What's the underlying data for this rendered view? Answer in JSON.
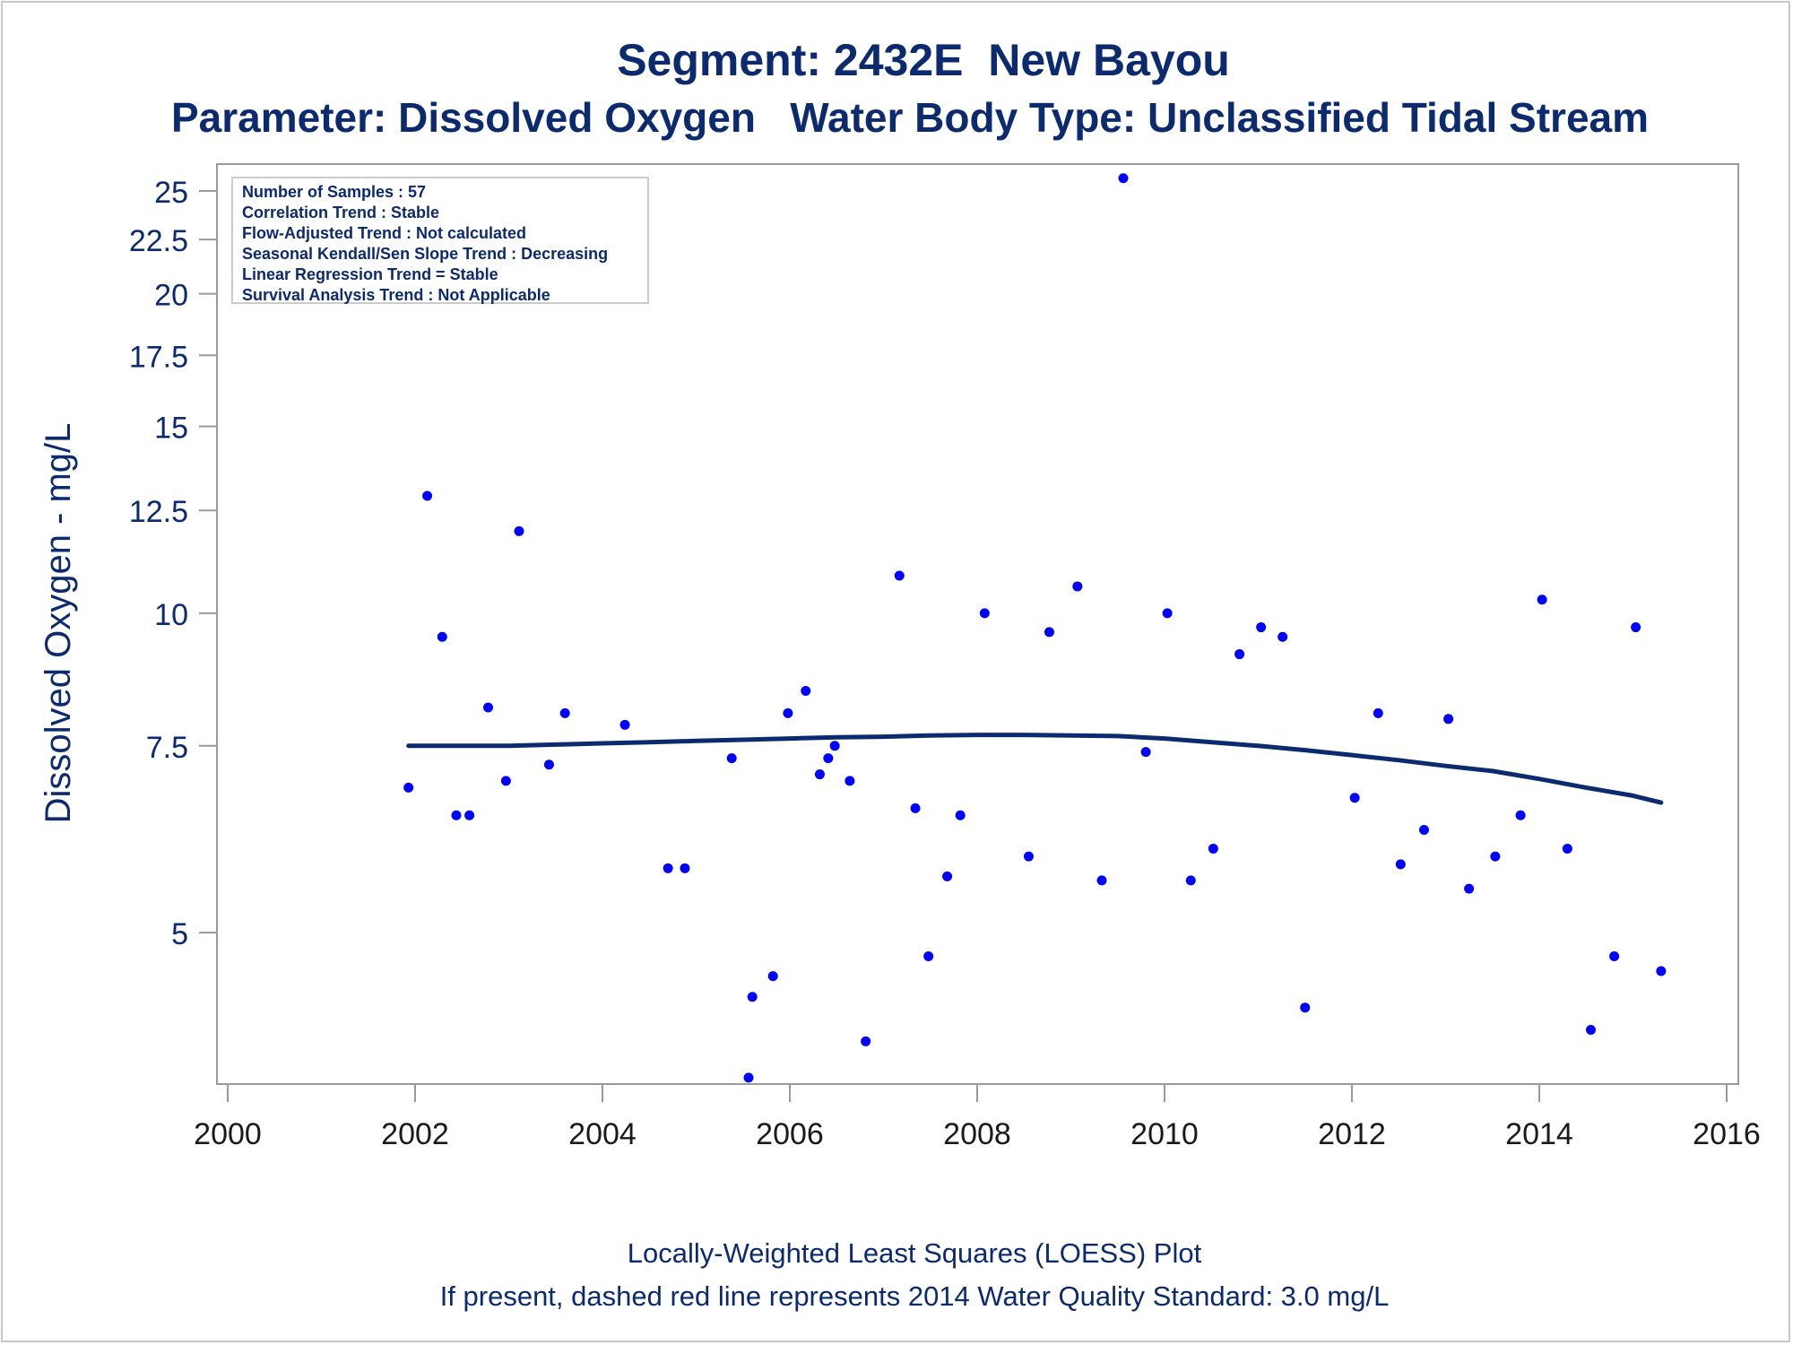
{
  "titles": {
    "line1": "Segment: 2432E  New Bayou",
    "line2": "Parameter: Dissolved Oxygen   Water Body Type: Unclassified Tidal Stream"
  },
  "stats_box": [
    "Number of Samples : 57",
    "Correlation Trend : Stable",
    "Flow-Adjusted Trend : Not calculated",
    "Seasonal Kendall/Sen Slope Trend : Decreasing",
    "Linear Regression Trend = Stable",
    "Survival Analysis Trend : Not Applicable"
  ],
  "footnotes": {
    "line1": "Locally-Weighted Least Squares (LOESS) Plot",
    "line2": "If present, dashed red line represents 2014 Water Quality Standard: 3.0 mg/L"
  },
  "colors": {
    "text": "#0c2a6e",
    "points": "#0000ff",
    "loess_line": "#0c2a6e",
    "axis": "#9a9a9a"
  },
  "chart_data": {
    "type": "scatter",
    "title": "Segment: 2432E  New Bayou",
    "subtitle": "Parameter: Dissolved Oxygen   Water Body Type: Unclassified Tidal Stream",
    "xlabel": "",
    "ylabel": "Dissolved Oxygen - mg/L",
    "y_scale": "log",
    "xlim": [
      2000,
      2016
    ],
    "ylim": [
      3.6,
      26.5
    ],
    "x_ticks": [
      2000,
      2002,
      2004,
      2006,
      2008,
      2010,
      2012,
      2014,
      2016
    ],
    "y_ticks": [
      5,
      7.5,
      10,
      12.5,
      15,
      17.5,
      20,
      22.5,
      25
    ],
    "y_tick_labels": [
      "5",
      "7.5",
      "10",
      "12.5",
      "15",
      "17.5",
      "20",
      "22.5",
      "25"
    ],
    "grid": false,
    "legend": "none",
    "points": [
      {
        "x": 2001.93,
        "y": 6.85
      },
      {
        "x": 2002.13,
        "y": 12.9
      },
      {
        "x": 2002.29,
        "y": 9.5
      },
      {
        "x": 2002.44,
        "y": 6.45
      },
      {
        "x": 2002.58,
        "y": 6.45
      },
      {
        "x": 2002.78,
        "y": 8.15
      },
      {
        "x": 2002.97,
        "y": 6.95
      },
      {
        "x": 2003.11,
        "y": 11.95
      },
      {
        "x": 2003.43,
        "y": 7.2
      },
      {
        "x": 2003.6,
        "y": 8.05
      },
      {
        "x": 2004.24,
        "y": 7.85
      },
      {
        "x": 2004.7,
        "y": 5.75
      },
      {
        "x": 2004.88,
        "y": 5.75
      },
      {
        "x": 2005.38,
        "y": 7.3
      },
      {
        "x": 2005.56,
        "y": 3.65
      },
      {
        "x": 2005.6,
        "y": 4.35
      },
      {
        "x": 2005.82,
        "y": 4.55
      },
      {
        "x": 2005.98,
        "y": 8.05
      },
      {
        "x": 2006.17,
        "y": 8.45
      },
      {
        "x": 2006.32,
        "y": 7.05
      },
      {
        "x": 2006.41,
        "y": 7.3
      },
      {
        "x": 2006.48,
        "y": 7.5
      },
      {
        "x": 2006.64,
        "y": 6.95
      },
      {
        "x": 2006.81,
        "y": 3.95
      },
      {
        "x": 2007.17,
        "y": 10.85
      },
      {
        "x": 2007.34,
        "y": 6.55
      },
      {
        "x": 2007.48,
        "y": 4.75
      },
      {
        "x": 2007.68,
        "y": 5.65
      },
      {
        "x": 2007.82,
        "y": 6.45
      },
      {
        "x": 2008.08,
        "y": 10.0
      },
      {
        "x": 2008.55,
        "y": 5.9
      },
      {
        "x": 2008.77,
        "y": 9.6
      },
      {
        "x": 2009.07,
        "y": 10.6
      },
      {
        "x": 2009.33,
        "y": 5.6
      },
      {
        "x": 2009.56,
        "y": 25.7
      },
      {
        "x": 2009.8,
        "y": 7.4
      },
      {
        "x": 2010.03,
        "y": 10.0
      },
      {
        "x": 2010.28,
        "y": 5.6
      },
      {
        "x": 2010.52,
        "y": 6.0
      },
      {
        "x": 2010.8,
        "y": 9.15
      },
      {
        "x": 2011.03,
        "y": 9.7
      },
      {
        "x": 2011.26,
        "y": 9.5
      },
      {
        "x": 2011.5,
        "y": 4.25
      },
      {
        "x": 2012.03,
        "y": 6.7
      },
      {
        "x": 2012.28,
        "y": 8.05
      },
      {
        "x": 2012.52,
        "y": 5.8
      },
      {
        "x": 2012.77,
        "y": 6.25
      },
      {
        "x": 2013.03,
        "y": 7.95
      },
      {
        "x": 2013.25,
        "y": 5.5
      },
      {
        "x": 2013.53,
        "y": 5.9
      },
      {
        "x": 2013.8,
        "y": 6.45
      },
      {
        "x": 2014.03,
        "y": 10.3
      },
      {
        "x": 2014.3,
        "y": 6.0
      },
      {
        "x": 2014.55,
        "y": 4.05
      },
      {
        "x": 2014.8,
        "y": 4.75
      },
      {
        "x": 2015.03,
        "y": 9.7
      },
      {
        "x": 2015.3,
        "y": 4.6
      }
    ],
    "loess": {
      "x": [
        2001.93,
        2002.5,
        2003.0,
        2003.5,
        2004.0,
        2004.5,
        2005.0,
        2005.5,
        2006.0,
        2006.5,
        2007.0,
        2007.5,
        2008.0,
        2008.5,
        2009.0,
        2009.5,
        2010.0,
        2010.5,
        2011.0,
        2011.5,
        2012.0,
        2012.5,
        2013.0,
        2013.5,
        2014.0,
        2014.5,
        2015.0,
        2015.3
      ],
      "y": [
        7.5,
        7.5,
        7.5,
        7.52,
        7.54,
        7.56,
        7.58,
        7.6,
        7.62,
        7.64,
        7.65,
        7.67,
        7.68,
        7.68,
        7.67,
        7.66,
        7.62,
        7.56,
        7.5,
        7.43,
        7.35,
        7.27,
        7.18,
        7.1,
        6.98,
        6.85,
        6.73,
        6.63
      ]
    }
  }
}
